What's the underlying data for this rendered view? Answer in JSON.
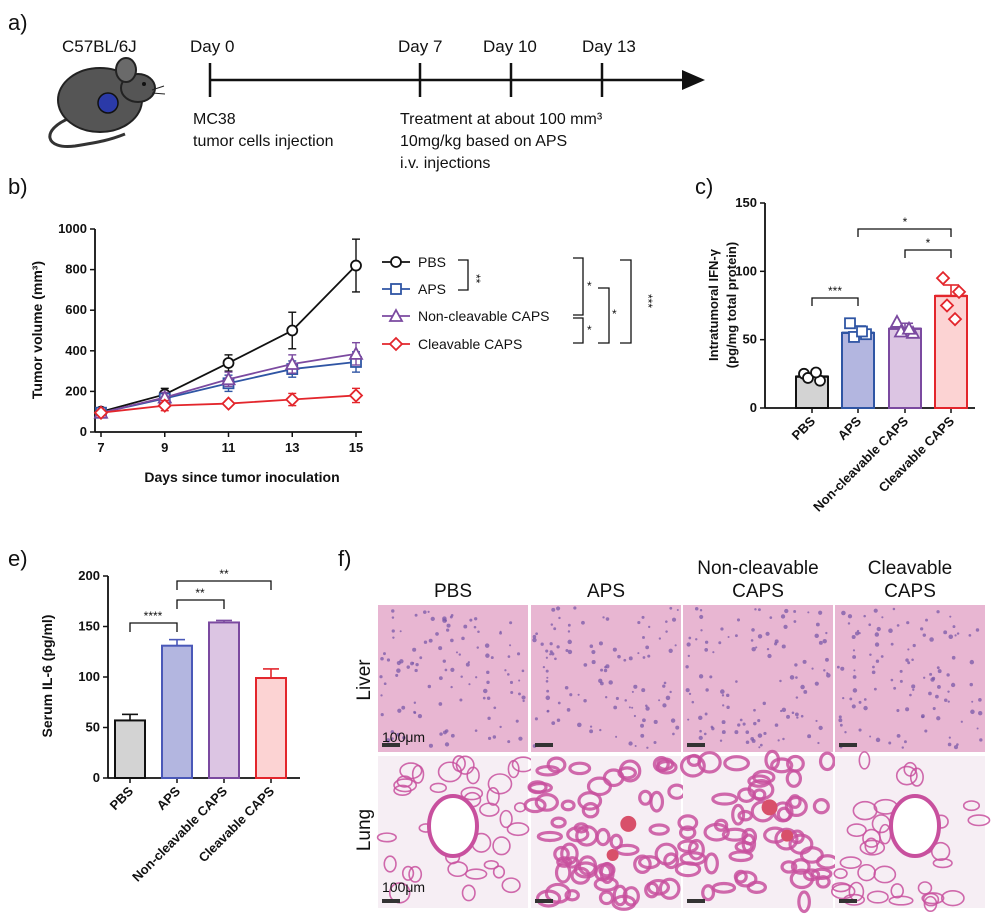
{
  "panel_a": {
    "letter": "a)",
    "mouse_label": "C57BL/6J",
    "days": [
      "Day 0",
      "Day 7",
      "Day 10",
      "Day 13"
    ],
    "note_left": [
      "MC38",
      "tumor cells injection"
    ],
    "note_right": [
      "Treatment at about 100 mm³",
      "10mg/kg based on APS",
      "i.v. injections"
    ]
  },
  "panel_b": {
    "letter": "b)"
  },
  "panel_c": {
    "letter": "c)"
  },
  "panel_e": {
    "letter": "e)"
  },
  "panel_f": {
    "letter": "f)",
    "columns": [
      [
        "PBS"
      ],
      [
        "APS"
      ],
      [
        "Non-cleavable",
        "CAPS"
      ],
      [
        "Cleavable",
        "CAPS"
      ]
    ],
    "rows": [
      "Liver",
      "Lung"
    ],
    "scale_label": "100μm",
    "colors": {
      "liver_base": "#e8b6d2",
      "liver_nuclei": "#7a58a8",
      "lung_tissue": "#c8509e",
      "lung_space": "#f6eef4",
      "blood": "#d8506a"
    }
  },
  "chart_data": [
    {
      "id": "b",
      "type": "line",
      "xlabel": "Days since tumor inoculation",
      "ylabel": "Tumor volume (mm³)",
      "xlim": [
        7,
        15
      ],
      "ylim": [
        0,
        1000
      ],
      "xticks": [
        "7",
        "9",
        "11",
        "13",
        "15"
      ],
      "yticks": [
        "0",
        "200",
        "400",
        "600",
        "800",
        "1000"
      ],
      "x": [
        7,
        9,
        11,
        13,
        15
      ],
      "legend_position": "right",
      "series": [
        {
          "name": "PBS",
          "color": "#111111",
          "marker": "circle",
          "values": [
            100,
            185,
            340,
            500,
            820
          ],
          "err": [
            15,
            30,
            40,
            90,
            130
          ]
        },
        {
          "name": "APS",
          "color": "#2f55a4",
          "marker": "square",
          "values": [
            95,
            165,
            240,
            310,
            345
          ],
          "err": [
            12,
            25,
            40,
            40,
            50
          ]
        },
        {
          "name": "Non-cleavable CAPS",
          "color": "#7b4aa0",
          "marker": "triangle",
          "values": [
            95,
            170,
            260,
            335,
            385
          ],
          "err": [
            12,
            25,
            35,
            45,
            55
          ]
        },
        {
          "name": "Cleavable CAPS",
          "color": "#e3262c",
          "marker": "diamond",
          "values": [
            95,
            130,
            140,
            160,
            180
          ],
          "err": [
            12,
            25,
            10,
            30,
            35
          ]
        }
      ],
      "significance": [
        "**",
        "*",
        "*",
        "*",
        "***"
      ]
    },
    {
      "id": "c",
      "type": "bar",
      "ylabel": [
        "Intratumoral IFN-γ",
        "(pg/mg total protein)"
      ],
      "ylim": [
        0,
        150
      ],
      "yticks": [
        "0",
        "50",
        "100",
        "150"
      ],
      "categories": [
        "PBS",
        "APS",
        "Non-cleavable CAPS",
        "Cleavable CAPS"
      ],
      "values": [
        23,
        55,
        58,
        82
      ],
      "err": [
        2,
        5,
        4,
        8
      ],
      "points": [
        [
          25,
          20,
          22,
          26
        ],
        [
          62,
          54,
          52,
          56
        ],
        [
          63,
          55,
          56,
          58
        ],
        [
          95,
          85,
          75,
          65
        ]
      ],
      "fill_colors": [
        "#d3d3d3",
        "#b3b6e0",
        "#dcc5e3",
        "#fcd3d3"
      ],
      "edge_colors": [
        "#111111",
        "#2f55a4",
        "#7b4aa0",
        "#e3262c"
      ],
      "significance": [
        "***",
        "*",
        "*"
      ]
    },
    {
      "id": "e",
      "type": "bar",
      "ylabel": "Serum IL-6 (pg/ml)",
      "ylim": [
        0,
        200
      ],
      "yticks": [
        "0",
        "50",
        "100",
        "150",
        "200"
      ],
      "categories": [
        "PBS",
        "APS",
        "Non-cleavable CAPS",
        "Cleavable CAPS"
      ],
      "values": [
        57,
        131,
        154,
        99
      ],
      "err": [
        6,
        6,
        2,
        9
      ],
      "fill_colors": [
        "#d3d3d3",
        "#b3b6e0",
        "#dcc5e3",
        "#fcd3d3"
      ],
      "edge_colors": [
        "#111111",
        "#4a58b8",
        "#7b4aa0",
        "#e3262c"
      ],
      "significance": [
        "****",
        "**",
        "**"
      ]
    }
  ]
}
